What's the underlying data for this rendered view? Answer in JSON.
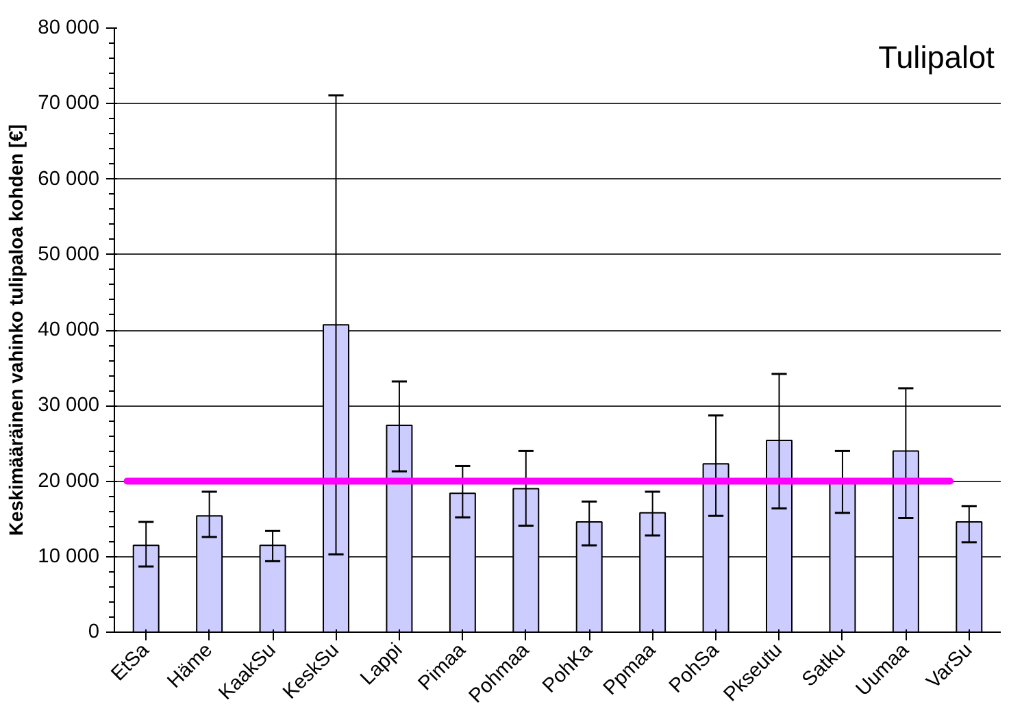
{
  "chart_data": {
    "type": "bar",
    "title": "Tulipalot",
    "ylabel": "Keskimääräinen vahinko tulipaloa kohden [€]",
    "categories": [
      "EtSa",
      "Häme",
      "KaakSu",
      "KeskSu",
      "Lappi",
      "Pimaa",
      "Pohmaa",
      "PohKa",
      "Ppmaa",
      "PohSa",
      "Pkseutu",
      "Satku",
      "Uumaa",
      "VarSu"
    ],
    "values": [
      11500,
      15400,
      11500,
      40700,
      27400,
      18400,
      19000,
      14600,
      15800,
      22300,
      25400,
      19800,
      24000,
      14600
    ],
    "errors": [
      [
        8700,
        14600
      ],
      [
        12600,
        18600
      ],
      [
        9400,
        13400
      ],
      [
        10300,
        71100
      ],
      [
        21300,
        33200
      ],
      [
        15200,
        22000
      ],
      [
        14100,
        24000
      ],
      [
        11500,
        17300
      ],
      [
        12800,
        18600
      ],
      [
        15400,
        28700
      ],
      [
        16400,
        34200
      ],
      [
        15800,
        24000
      ],
      [
        15100,
        32300
      ],
      [
        11900,
        16700
      ]
    ],
    "color": "#ccccff",
    "ylim": [
      0,
      80000
    ],
    "yticks": [
      {
        "value": 0,
        "label": "0"
      },
      {
        "value": 10000,
        "label": "10 000"
      },
      {
        "value": 20000,
        "label": "20 000"
      },
      {
        "value": 30000,
        "label": "30 000"
      },
      {
        "value": 40000,
        "label": "40 000"
      },
      {
        "value": 50000,
        "label": "50 000"
      },
      {
        "value": 60000,
        "label": "60 000"
      },
      {
        "value": 70000,
        "label": "70 000"
      },
      {
        "value": 80000,
        "label": "80 000"
      }
    ],
    "ref_lines": [
      {
        "axis": "y",
        "value": 20000,
        "label": null,
        "color": "#ff00ff"
      }
    ],
    "grid": "y"
  }
}
